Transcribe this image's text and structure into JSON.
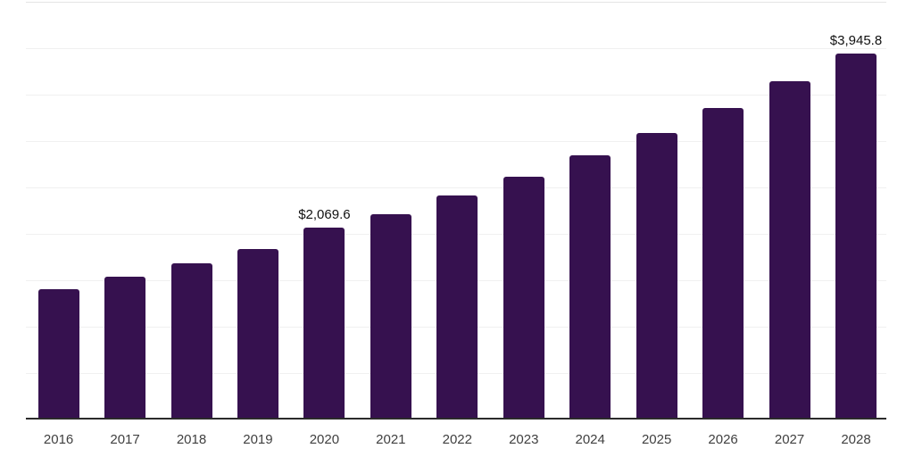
{
  "chart_data": {
    "type": "bar",
    "title": "",
    "xlabel": "",
    "ylabel": "",
    "categories": [
      "2016",
      "2017",
      "2018",
      "2019",
      "2020",
      "2021",
      "2022",
      "2023",
      "2024",
      "2025",
      "2026",
      "2027",
      "2028"
    ],
    "values": [
      1400,
      1540,
      1685,
      1840,
      2069.6,
      2210,
      2415,
      2615,
      2845,
      3090,
      3355,
      3645,
      3945.8
    ],
    "point_labels": [
      "",
      "",
      "",
      "",
      "$2,069.6",
      "",
      "",
      "",
      "",
      "",
      "",
      "",
      "$3,945.8"
    ],
    "ylim": [
      0,
      4500
    ],
    "gridline_step": 500,
    "grid": "horizontal-only",
    "y_tick_labels_visible": false,
    "legend_position": "none",
    "colors": {
      "bar": "#36114f",
      "gridline": "#f0f0f0",
      "top_gridline": "#e4e4e4",
      "axis_line": "#2b2b2b",
      "value_label": "#111111",
      "tick_label": "#404040",
      "background": "#ffffff"
    }
  }
}
